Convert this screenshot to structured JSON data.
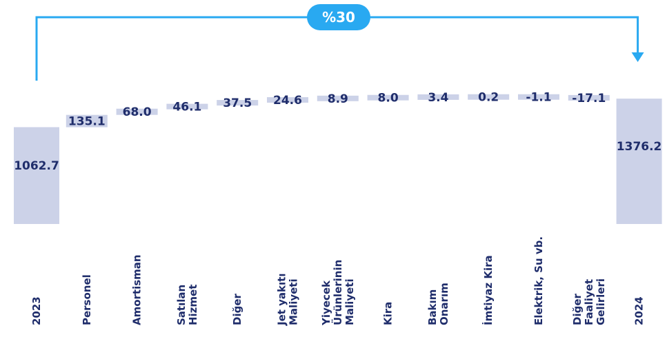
{
  "chart_data": {
    "type": "waterfall",
    "title": "",
    "categories": [
      [
        "2023"
      ],
      [
        "Personel"
      ],
      [
        "Amortisman"
      ],
      [
        "Satılan",
        "Hizmet"
      ],
      [
        "Diğer"
      ],
      [
        "Jet yakıtı",
        "Maliyeti"
      ],
      [
        "Yiyecek",
        "Ürünlerinin",
        "Maliyeti"
      ],
      [
        "Kira"
      ],
      [
        "Bakım",
        "Onarım"
      ],
      [
        "İmtiyaz Kira"
      ],
      [
        "Elektrik, Su vb."
      ],
      [
        "Diğer",
        "Faaliyet",
        "Gelirleri"
      ],
      [
        "2024"
      ]
    ],
    "values": [
      1062.7,
      135.1,
      68.0,
      46.1,
      37.5,
      24.6,
      8.9,
      8.0,
      3.4,
      0.2,
      -1.1,
      -17.1,
      1376.2
    ],
    "labels": [
      "1062.7",
      "135.1",
      "68.0",
      "46.1",
      "37.5",
      "24.6",
      "8.9",
      "8.0",
      "3.4",
      "0.2",
      "-1.1",
      "-17.1",
      "1376.2"
    ],
    "totals": [
      0,
      12
    ],
    "change_label": "%30",
    "colors": {
      "bar": "#ccd2e8",
      "text": "#1f2d6b",
      "accent": "#29a9f1"
    }
  }
}
